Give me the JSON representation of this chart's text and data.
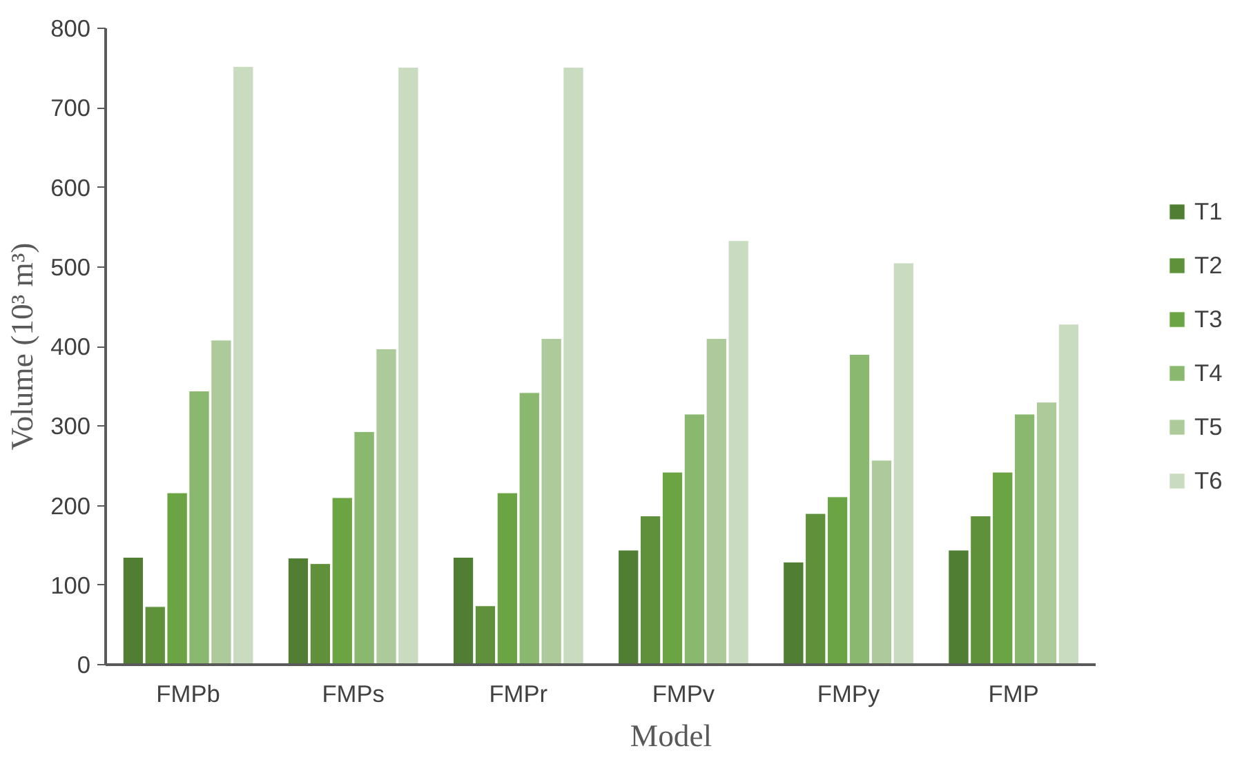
{
  "chart_data": {
    "type": "bar",
    "xlabel": "Model",
    "ylabel": "Volume (10³ m³)",
    "categories": [
      "FMPb",
      "FMPs",
      "FMPr",
      "FMPv",
      "FMPy",
      "FMP"
    ],
    "series": [
      {
        "name": "T1",
        "color": "#507e32",
        "values": [
          135,
          134,
          135,
          144,
          129,
          144
        ]
      },
      {
        "name": "T2",
        "color": "#5f913a",
        "values": [
          73,
          127,
          74,
          187,
          190,
          187
        ]
      },
      {
        "name": "T3",
        "color": "#6ba443",
        "values": [
          216,
          210,
          216,
          242,
          211,
          242
        ]
      },
      {
        "name": "T4",
        "color": "#8ab86e",
        "values": [
          344,
          293,
          342,
          315,
          390,
          315
        ]
      },
      {
        "name": "T5",
        "color": "#adca9b",
        "values": [
          408,
          397,
          410,
          410,
          257,
          330
        ]
      },
      {
        "name": "T6",
        "color": "#cadcc0",
        "values": [
          752,
          751,
          751,
          533,
          505,
          428
        ]
      }
    ],
    "ylim": [
      0,
      800
    ],
    "yticks": [
      0,
      100,
      200,
      300,
      400,
      500,
      600,
      700,
      800
    ],
    "grid": false,
    "legend": "right"
  }
}
